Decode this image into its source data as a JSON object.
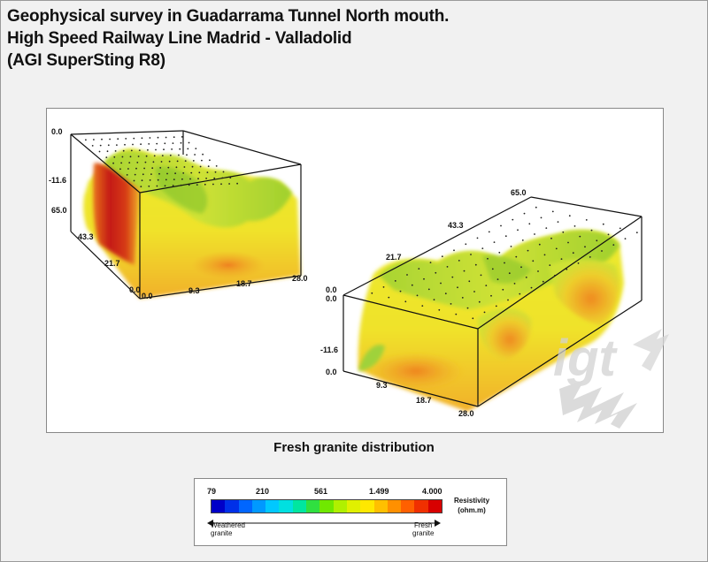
{
  "title": {
    "line1": "Geophysical survey in Guadarrama Tunnel North mouth.",
    "line2": "High Speed Railway Line Madrid - Valladolid",
    "line3": "(AGI SuperSting R8)"
  },
  "left_block": {
    "labels": {
      "z_top": "0.0",
      "z_mid": "-11.6",
      "y_far": "65.0",
      "y_43": "43.3",
      "y_21": "21.7",
      "y_0": "0.0",
      "x_0": "0.0",
      "x_9": "9.3",
      "x_18": "18.7",
      "x_28": "28.0"
    }
  },
  "right_block": {
    "labels": {
      "y_far": "65.0",
      "y_43": "43.3",
      "y_21": "21.7",
      "y_0": "0.0",
      "z_top": "0.0",
      "z_mid": "-11.6",
      "z_bottom": "0.0",
      "x_9": "9.3",
      "x_18": "18.7",
      "x_28": "28.0"
    }
  },
  "caption": "Fresh granite distribution",
  "legend": {
    "ticks": [
      "79",
      "210",
      "561",
      "1.499",
      "4.000"
    ],
    "unit_line1": "Resistivity",
    "unit_line2": "(ohm.m)",
    "left_label_line1": "Weathered",
    "left_label_line2": "granite",
    "right_label_line1": "Fresh",
    "right_label_line2": "granite",
    "colors": [
      "#0000c8",
      "#0030e8",
      "#0066ff",
      "#0099ff",
      "#00c8ff",
      "#00e0e0",
      "#00e6a0",
      "#30e040",
      "#70e800",
      "#b0f000",
      "#e0f000",
      "#ffe800",
      "#ffc000",
      "#ff9000",
      "#ff6000",
      "#f03000",
      "#d80000"
    ]
  },
  "watermark": "igt",
  "colors": {
    "red": "#d01f10",
    "orange": "#ef8a1c",
    "yellow": "#e8e72a",
    "green": "#98d42a"
  }
}
